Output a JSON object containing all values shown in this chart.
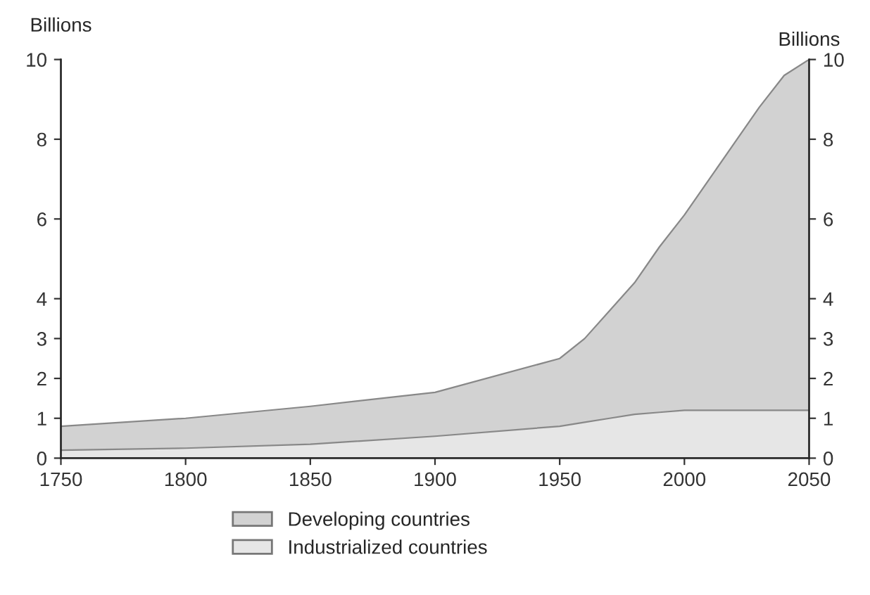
{
  "chart_data": {
    "type": "area",
    "stacked": true,
    "x": [
      1750,
      1800,
      1850,
      1900,
      1950,
      1960,
      1970,
      1980,
      1990,
      2000,
      2010,
      2020,
      2030,
      2040,
      2050
    ],
    "series": [
      {
        "name": "Industrialized countries",
        "color": "#e6e6e6",
        "values": [
          0.2,
          0.25,
          0.35,
          0.55,
          0.8,
          0.9,
          1.0,
          1.1,
          1.15,
          1.2,
          1.2,
          1.2,
          1.2,
          1.2,
          1.2
        ]
      },
      {
        "name": "Developing countries",
        "color": "#d2d2d2",
        "values": [
          0.6,
          0.75,
          0.95,
          1.1,
          1.7,
          2.1,
          2.7,
          3.3,
          4.15,
          4.9,
          5.8,
          6.7,
          7.6,
          8.4,
          8.8
        ]
      }
    ],
    "xlim": [
      1750,
      2050
    ],
    "xticks": [
      1750,
      1800,
      1850,
      1900,
      1950,
      2000,
      2050
    ],
    "ylim": [
      0,
      10
    ],
    "yticks": [
      0,
      1,
      2,
      3,
      4,
      6,
      8,
      10
    ],
    "y2lim": [
      0,
      10
    ],
    "y2ticks": [
      0,
      1,
      2,
      3,
      4,
      6,
      8,
      10
    ],
    "ylabel": "Billions",
    "y2label": "Billions",
    "grid": false,
    "legend": "bottom"
  }
}
